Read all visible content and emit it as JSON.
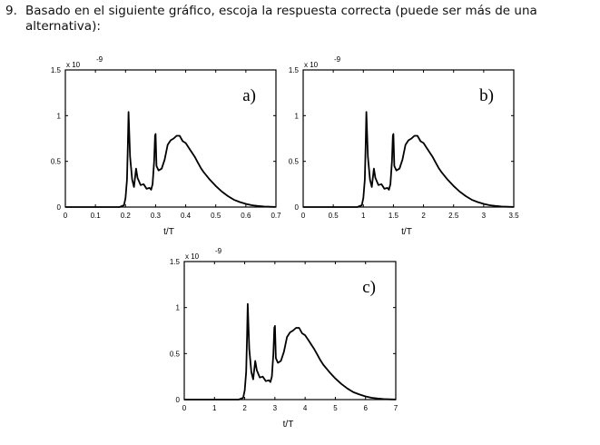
{
  "question": {
    "number": "9.",
    "text": "Basado en el siguiente gráfico, escoja la respuesta correcta (puede ser más de una alternativa):"
  },
  "chart_data": [
    {
      "type": "line",
      "panel_label": "a)",
      "xlabel": "t/T",
      "ylabel": "",
      "y_multiplier": "x 10",
      "y_exponent": "-9",
      "xlim": [
        0,
        0.7
      ],
      "ylim": [
        0,
        1.5
      ],
      "x_ticks": [
        "0",
        "0.1",
        "0.2",
        "0.3",
        "0.4",
        "0.5",
        "0.6",
        "0.7"
      ],
      "y_ticks": [
        "0",
        "0.5",
        "1",
        "1.5"
      ],
      "series": [
        {
          "x": [
            0,
            0.18,
            0.195,
            0.2,
            0.205,
            0.208,
            0.21,
            0.215,
            0.222,
            0.228,
            0.235,
            0.24,
            0.25,
            0.26,
            0.27,
            0.28,
            0.285,
            0.29,
            0.295,
            0.298,
            0.3,
            0.303,
            0.31,
            0.32,
            0.33,
            0.34,
            0.35,
            0.36,
            0.37,
            0.38,
            0.39,
            0.4,
            0.41,
            0.42,
            0.43,
            0.44,
            0.45,
            0.46,
            0.48,
            0.5,
            0.52,
            0.54,
            0.56,
            0.58,
            0.6,
            0.62,
            0.64,
            0.66,
            0.68,
            0.7
          ],
          "y": [
            0,
            0,
            0.02,
            0.1,
            0.3,
            0.7,
            1.04,
            0.55,
            0.3,
            0.22,
            0.42,
            0.32,
            0.24,
            0.25,
            0.2,
            0.21,
            0.19,
            0.25,
            0.5,
            0.78,
            0.8,
            0.45,
            0.4,
            0.42,
            0.52,
            0.68,
            0.73,
            0.75,
            0.78,
            0.78,
            0.72,
            0.7,
            0.65,
            0.6,
            0.55,
            0.49,
            0.43,
            0.38,
            0.3,
            0.23,
            0.17,
            0.12,
            0.08,
            0.055,
            0.035,
            0.02,
            0.012,
            0.006,
            0.003,
            0.001
          ]
        }
      ]
    },
    {
      "type": "line",
      "panel_label": "b)",
      "xlabel": "t/T",
      "ylabel": "",
      "y_multiplier": "x 10",
      "y_exponent": "-9",
      "xlim": [
        0,
        3.5
      ],
      "ylim": [
        0,
        1.5
      ],
      "x_ticks": [
        "0",
        "0.5",
        "1",
        "1.5",
        "2",
        "2.5",
        "3",
        "3.5"
      ],
      "y_ticks": [
        "0",
        "0.5",
        "1",
        "1.5"
      ],
      "series": [
        {
          "x": [
            0,
            0.9,
            0.975,
            1.0,
            1.025,
            1.04,
            1.05,
            1.075,
            1.11,
            1.14,
            1.175,
            1.2,
            1.25,
            1.3,
            1.35,
            1.4,
            1.425,
            1.45,
            1.475,
            1.49,
            1.5,
            1.515,
            1.55,
            1.6,
            1.65,
            1.7,
            1.75,
            1.8,
            1.85,
            1.9,
            1.95,
            2.0,
            2.05,
            2.1,
            2.15,
            2.2,
            2.25,
            2.3,
            2.4,
            2.5,
            2.6,
            2.7,
            2.8,
            2.9,
            3.0,
            3.1,
            3.2,
            3.3,
            3.4,
            3.5
          ],
          "y": [
            0,
            0,
            0.02,
            0.1,
            0.3,
            0.7,
            1.04,
            0.55,
            0.3,
            0.22,
            0.42,
            0.32,
            0.24,
            0.25,
            0.2,
            0.21,
            0.19,
            0.25,
            0.5,
            0.78,
            0.8,
            0.45,
            0.4,
            0.42,
            0.52,
            0.68,
            0.73,
            0.75,
            0.78,
            0.78,
            0.72,
            0.7,
            0.65,
            0.6,
            0.55,
            0.49,
            0.43,
            0.38,
            0.3,
            0.23,
            0.17,
            0.12,
            0.08,
            0.055,
            0.035,
            0.02,
            0.012,
            0.006,
            0.003,
            0.001
          ]
        }
      ]
    },
    {
      "type": "line",
      "panel_label": "c)",
      "xlabel": "t/T",
      "ylabel": "",
      "y_multiplier": "x 10",
      "y_exponent": "-9",
      "xlim": [
        0,
        7
      ],
      "ylim": [
        0,
        1.5
      ],
      "x_ticks": [
        "0",
        "1",
        "2",
        "3",
        "4",
        "5",
        "6",
        "7"
      ],
      "y_ticks": [
        "0",
        "0.5",
        "1",
        "1.5"
      ],
      "series": [
        {
          "x": [
            0,
            1.8,
            1.95,
            2.0,
            2.05,
            2.08,
            2.1,
            2.15,
            2.22,
            2.28,
            2.35,
            2.4,
            2.5,
            2.6,
            2.7,
            2.8,
            2.85,
            2.9,
            2.95,
            2.98,
            3.0,
            3.03,
            3.1,
            3.2,
            3.3,
            3.4,
            3.5,
            3.6,
            3.7,
            3.8,
            3.9,
            4.0,
            4.1,
            4.2,
            4.3,
            4.4,
            4.5,
            4.6,
            4.8,
            5.0,
            5.2,
            5.4,
            5.6,
            5.8,
            6.0,
            6.2,
            6.4,
            6.6,
            6.8,
            7.0
          ],
          "y": [
            0,
            0,
            0.02,
            0.1,
            0.3,
            0.7,
            1.04,
            0.55,
            0.3,
            0.22,
            0.42,
            0.32,
            0.24,
            0.25,
            0.2,
            0.21,
            0.19,
            0.25,
            0.5,
            0.78,
            0.8,
            0.45,
            0.4,
            0.42,
            0.52,
            0.68,
            0.73,
            0.75,
            0.78,
            0.78,
            0.72,
            0.7,
            0.65,
            0.6,
            0.55,
            0.49,
            0.43,
            0.38,
            0.3,
            0.23,
            0.17,
            0.12,
            0.08,
            0.055,
            0.035,
            0.02,
            0.012,
            0.006,
            0.003,
            0.001
          ]
        }
      ]
    }
  ]
}
